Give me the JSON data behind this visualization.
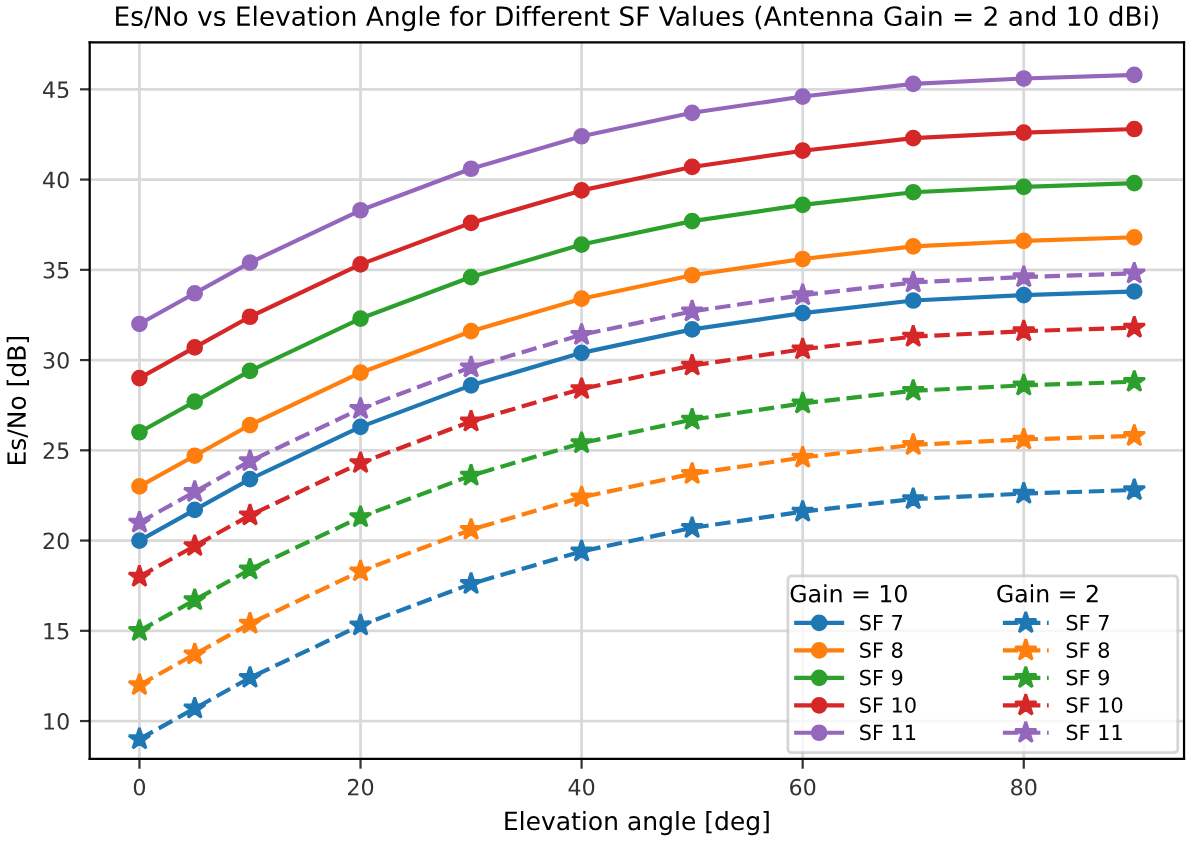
{
  "chart_data": {
    "type": "line",
    "title": "Es/No vs Elevation Angle for Different SF Values (Antenna Gain = 2 and 10 dBi)",
    "xlabel": "Elevation angle [deg]",
    "ylabel": "Es/No [dB]",
    "x": [
      0,
      5,
      10,
      20,
      30,
      40,
      50,
      60,
      70,
      80,
      90
    ],
    "xlim": [
      -4.5,
      94.5
    ],
    "xticks": [
      0,
      20,
      40,
      60,
      80
    ],
    "ylim": [
      7.9,
      47.6
    ],
    "yticks": [
      10,
      15,
      20,
      25,
      30,
      35,
      40,
      45
    ],
    "grid": true,
    "legend": "bottom right",
    "legend_title": [
      "Gain = 10",
      "Gain = 2"
    ],
    "series": [
      {
        "name": "SF 7",
        "color": "#1f77b4",
        "marker": "circle",
        "line_style": "solid",
        "values": [
          20,
          21.7,
          23.4,
          26.3,
          28.6,
          30.4,
          31.7,
          32.6,
          33.3,
          33.6,
          33.8
        ]
      },
      {
        "name": "SF 8",
        "color": "#ff7f0e",
        "marker": "circle",
        "line_style": "solid",
        "values": [
          23,
          24.7,
          26.4,
          29.3,
          31.6,
          33.4,
          34.7,
          35.6,
          36.3,
          36.6,
          36.8
        ]
      },
      {
        "name": "SF 9",
        "color": "#2ca02c",
        "marker": "circle",
        "line_style": "solid",
        "values": [
          26,
          27.7,
          29.4,
          32.3,
          34.6,
          36.4,
          37.7,
          38.6,
          39.3,
          39.6,
          39.8
        ]
      },
      {
        "name": "SF 10",
        "color": "#d62728",
        "marker": "circle",
        "line_style": "solid",
        "values": [
          29,
          30.7,
          32.4,
          35.3,
          37.6,
          39.4,
          40.7,
          41.6,
          42.3,
          42.6,
          42.8
        ]
      },
      {
        "name": "SF 11",
        "color": "#9467bd",
        "marker": "circle",
        "line_style": "solid",
        "values": [
          32,
          33.7,
          35.4,
          38.3,
          40.6,
          42.4,
          43.7,
          44.6,
          45.3,
          45.6,
          45.8
        ]
      },
      {
        "name": "SF 7",
        "color": "#1f77b4",
        "marker": "star",
        "line_style": "dashed",
        "values": [
          9,
          10.7,
          12.4,
          15.3,
          17.6,
          19.4,
          20.7,
          21.6,
          22.3,
          22.6,
          22.8
        ]
      },
      {
        "name": "SF 8",
        "color": "#ff7f0e",
        "marker": "star",
        "line_style": "dashed",
        "values": [
          12,
          13.7,
          15.4,
          18.3,
          20.6,
          22.4,
          23.7,
          24.6,
          25.3,
          25.6,
          25.8
        ]
      },
      {
        "name": "SF 9",
        "color": "#2ca02c",
        "marker": "star",
        "line_style": "dashed",
        "values": [
          15,
          16.7,
          18.4,
          21.3,
          23.6,
          25.4,
          26.7,
          27.6,
          28.3,
          28.6,
          28.8
        ]
      },
      {
        "name": "SF 10",
        "color": "#d62728",
        "marker": "star",
        "line_style": "dashed",
        "values": [
          18,
          19.7,
          21.4,
          24.3,
          26.6,
          28.4,
          29.7,
          30.6,
          31.3,
          31.6,
          31.8
        ]
      },
      {
        "name": "SF 11",
        "color": "#9467bd",
        "marker": "star",
        "line_style": "dashed",
        "values": [
          21,
          22.7,
          24.4,
          27.3,
          29.6,
          31.4,
          32.7,
          33.6,
          34.3,
          34.6,
          34.8
        ]
      }
    ]
  }
}
